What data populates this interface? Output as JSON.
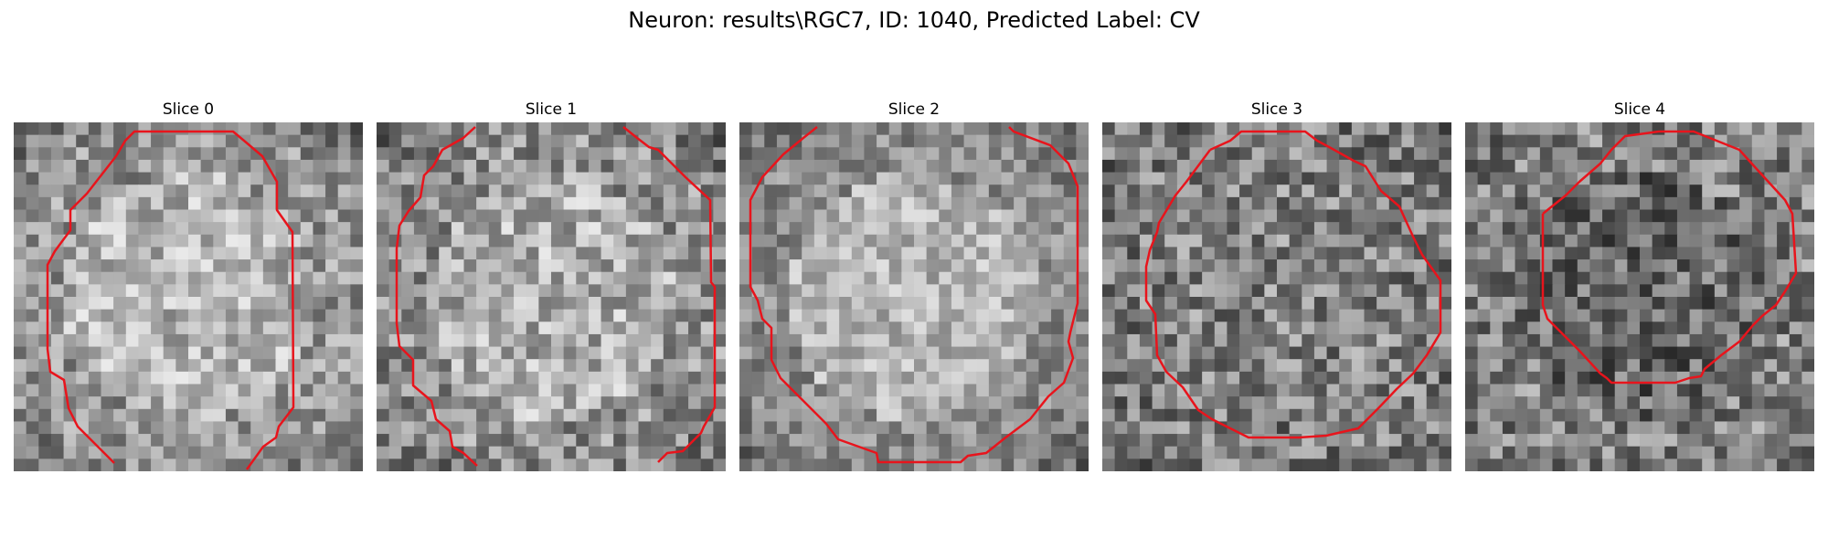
{
  "figure": {
    "title": "Neuron: results\\RGC7, ID: 1040, Predicted Label: CV",
    "contour_color": "#e8141c"
  },
  "slices": [
    {
      "label": "Slice 0",
      "seed": 11,
      "base": 150,
      "contrast": 55,
      "cell_boost": 30,
      "dark_corners": 0.8
    },
    {
      "label": "Slice 1",
      "seed": 23,
      "base": 145,
      "contrast": 60,
      "cell_boost": 28,
      "dark_corners": 0.9
    },
    {
      "label": "Slice 2",
      "seed": 37,
      "base": 140,
      "contrast": 45,
      "cell_boost": 40,
      "dark_corners": 0.7
    },
    {
      "label": "Slice 3",
      "seed": 41,
      "base": 125,
      "contrast": 65,
      "cell_boost": 5,
      "dark_corners": 0.3
    },
    {
      "label": "Slice 4",
      "seed": 59,
      "base": 130,
      "contrast": 65,
      "cell_boost": -25,
      "dark_corners": 0.2
    }
  ]
}
